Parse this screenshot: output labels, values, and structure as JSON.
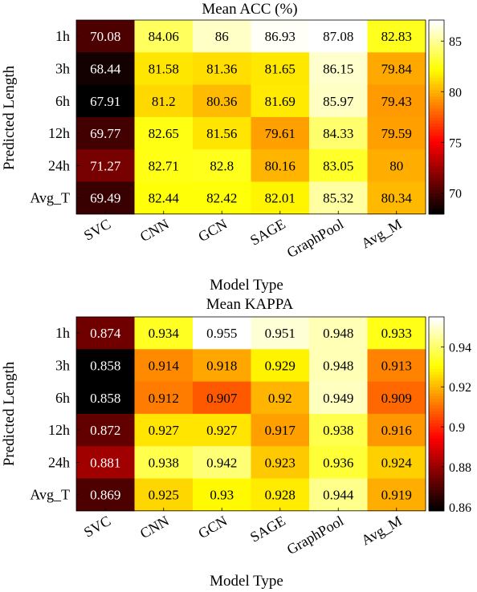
{
  "chart_data": [
    {
      "type": "heatmap",
      "title": "Mean ACC (%)",
      "xlabel": "Model Type",
      "ylabel": "Predicted Length",
      "x_categories": [
        "SVC",
        "CNN",
        "GCN",
        "SAGE",
        "GraphPool",
        "Avg_M"
      ],
      "y_categories": [
        "1h",
        "3h",
        "6h",
        "12h",
        "24h",
        "Avg_T"
      ],
      "values": [
        [
          "70.08",
          "84.06",
          "86",
          "86.93",
          "87.08",
          "82.83"
        ],
        [
          "68.44",
          "81.58",
          "81.36",
          "81.65",
          "86.15",
          "79.84"
        ],
        [
          "67.91",
          "81.2",
          "80.36",
          "81.69",
          "85.97",
          "79.43"
        ],
        [
          "69.77",
          "82.65",
          "81.56",
          "79.61",
          "84.33",
          "79.59"
        ],
        [
          "71.27",
          "82.71",
          "82.8",
          "80.16",
          "83.05",
          "80"
        ],
        [
          "69.49",
          "82.44",
          "82.42",
          "82.01",
          "85.32",
          "80.34"
        ]
      ],
      "colorbar": {
        "range": [
          67.91,
          87.08
        ],
        "ticks": [
          "70",
          "75",
          "80",
          "85"
        ],
        "colormap": "hot"
      }
    },
    {
      "type": "heatmap",
      "title": "Mean KAPPA",
      "xlabel": "Model Type",
      "ylabel": "Predicted Length",
      "x_categories": [
        "SVC",
        "CNN",
        "GCN",
        "SAGE",
        "GraphPool",
        "Avg_M"
      ],
      "y_categories": [
        "1h",
        "3h",
        "6h",
        "12h",
        "24h",
        "Avg_T"
      ],
      "values": [
        [
          "0.874",
          "0.934",
          "0.955",
          "0.951",
          "0.948",
          "0.933"
        ],
        [
          "0.858",
          "0.914",
          "0.918",
          "0.929",
          "0.948",
          "0.913"
        ],
        [
          "0.858",
          "0.912",
          "0.907",
          "0.92",
          "0.949",
          "0.909"
        ],
        [
          "0.872",
          "0.927",
          "0.927",
          "0.917",
          "0.938",
          "0.916"
        ],
        [
          "0.881",
          "0.938",
          "0.942",
          "0.923",
          "0.936",
          "0.924"
        ],
        [
          "0.869",
          "0.925",
          "0.93",
          "0.928",
          "0.944",
          "0.919"
        ]
      ],
      "colorbar": {
        "range": [
          0.858,
          0.955
        ],
        "ticks": [
          "0.86",
          "0.88",
          "0.9",
          "0.92",
          "0.94"
        ],
        "colormap": "hot"
      }
    }
  ]
}
